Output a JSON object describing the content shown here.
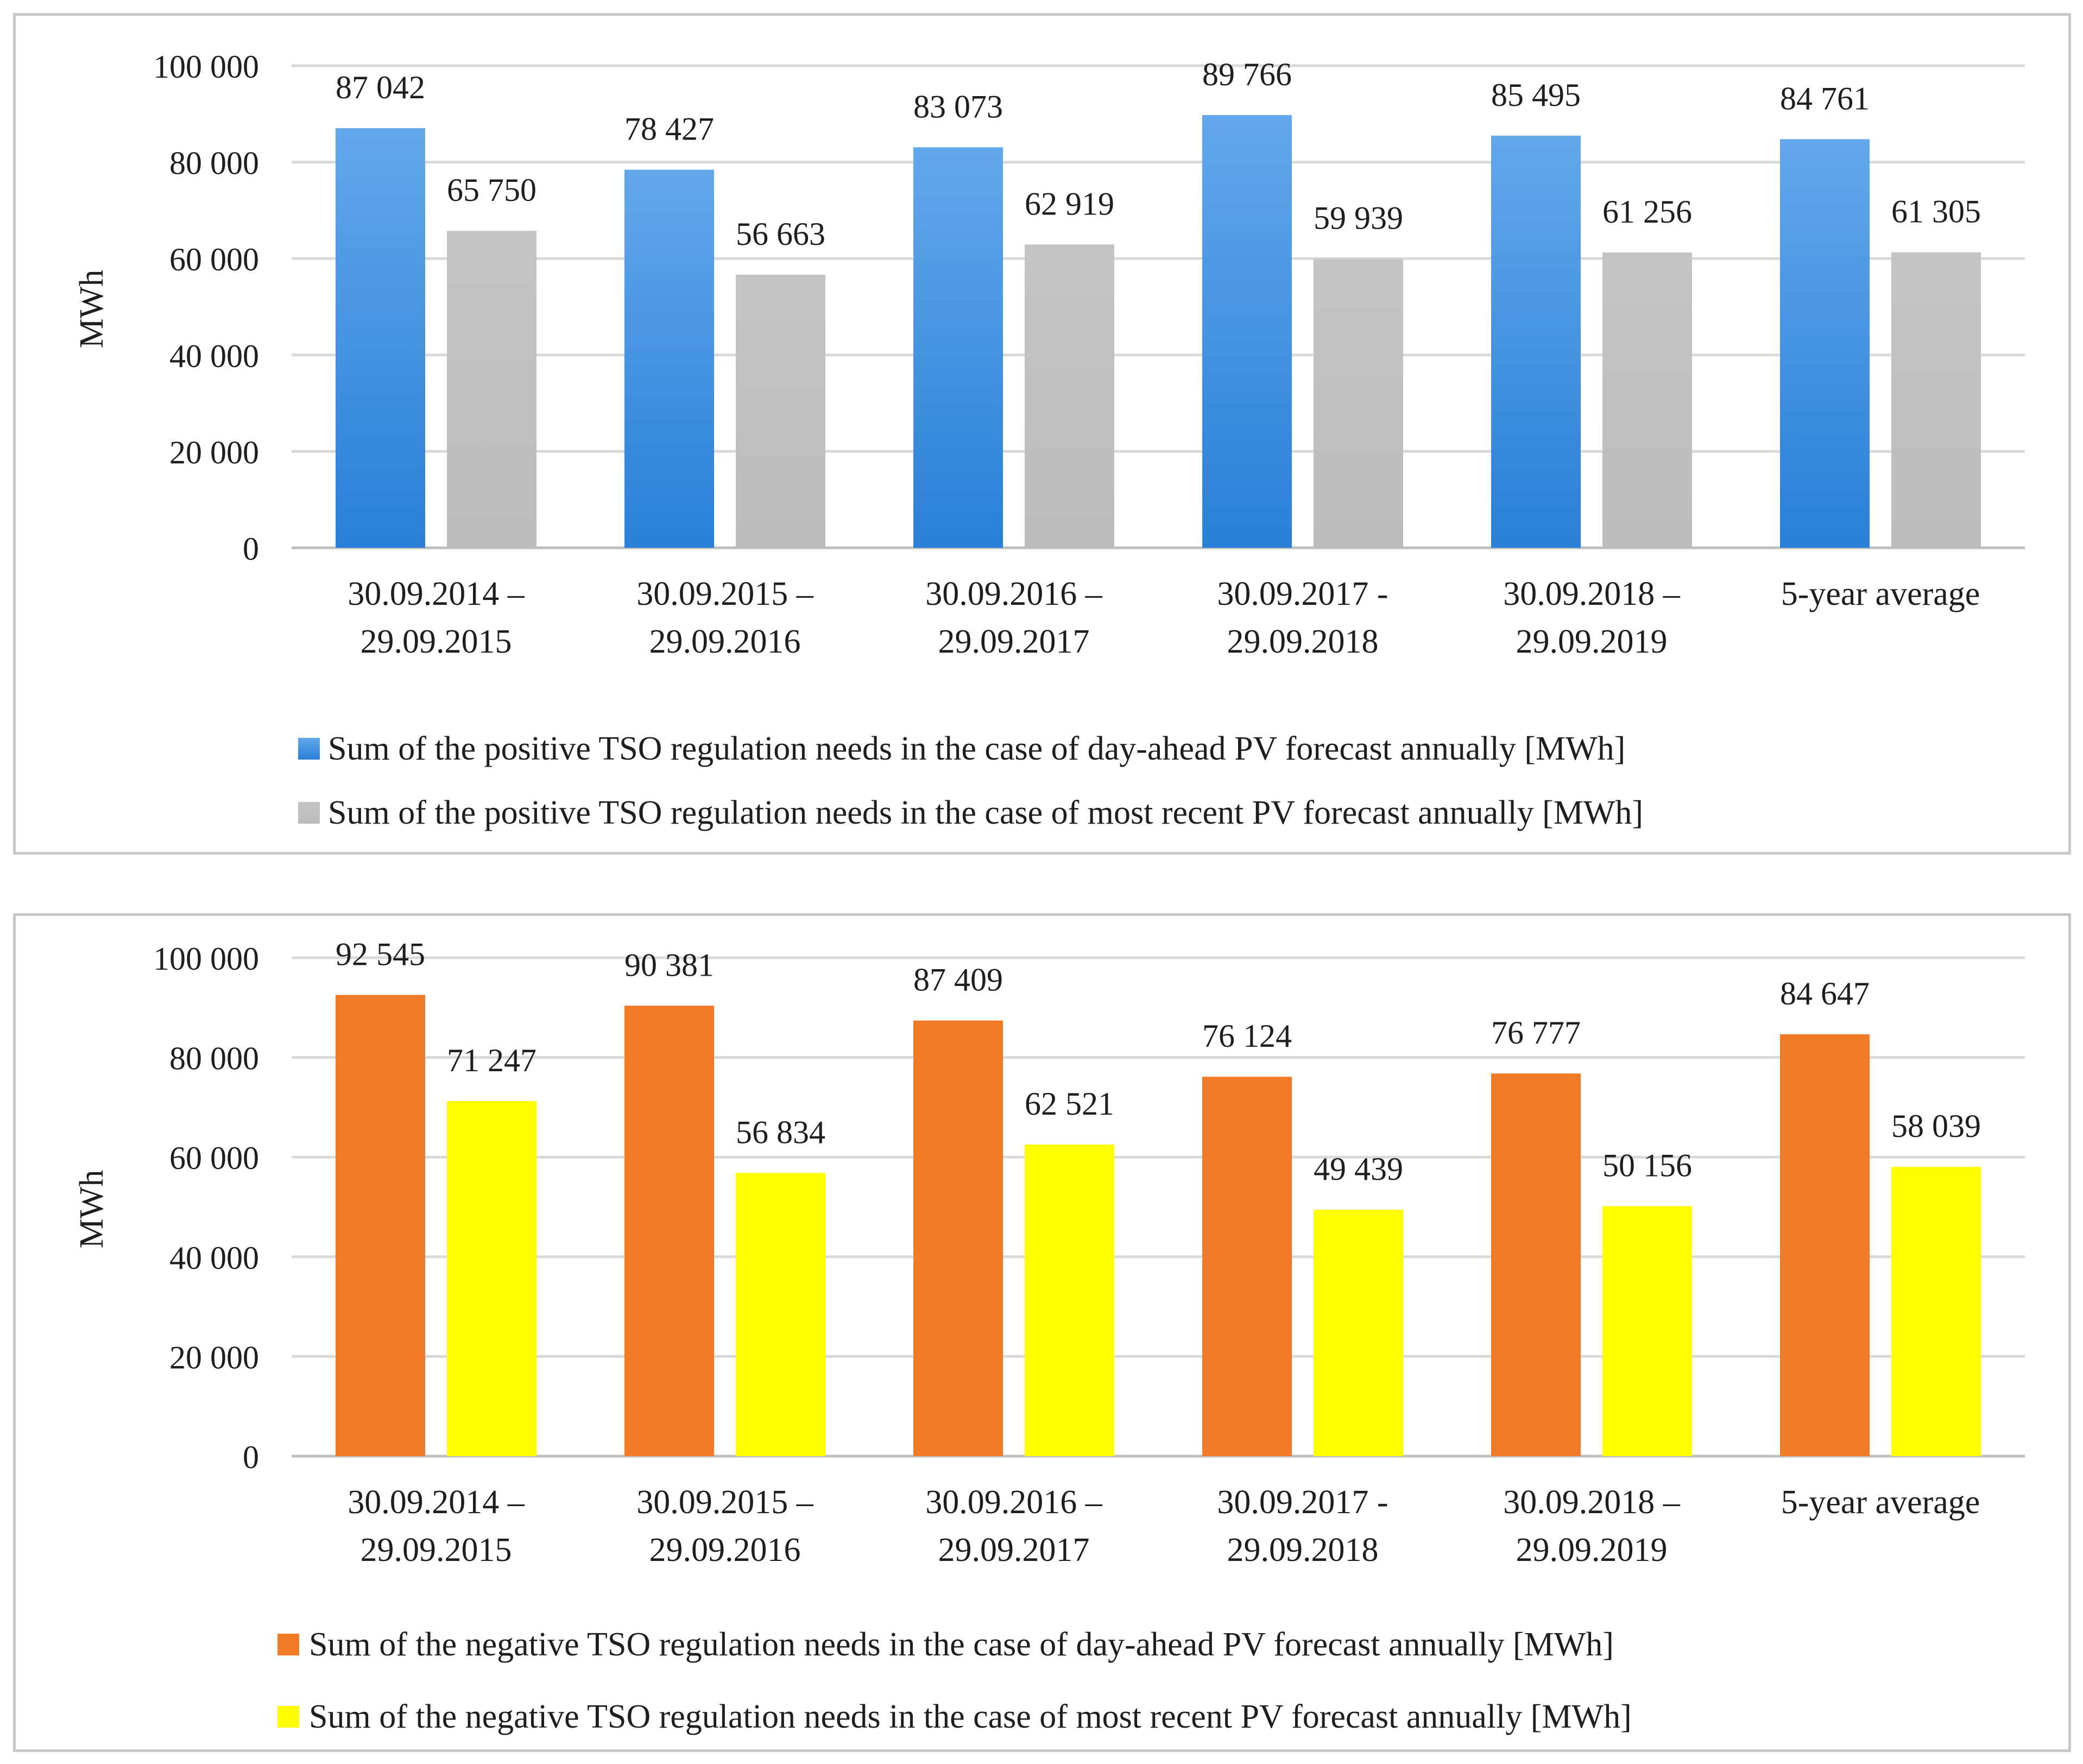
{
  "chart_data": [
    {
      "type": "bar",
      "ylabel": "MWh",
      "ylim": [
        0,
        100000
      ],
      "yticks": [
        0,
        20000,
        40000,
        60000,
        80000,
        100000
      ],
      "ytick_labels": [
        "0",
        "20 000",
        "40 000",
        "60 000",
        "80 000",
        "100 000"
      ],
      "grid": true,
      "legend_position": "bottom",
      "categories": [
        [
          "30.09.2014 –",
          "29.09.2015"
        ],
        [
          "30.09.2015 –",
          "29.09.2016"
        ],
        [
          "30.09.2016 –",
          "29.09.2017"
        ],
        [
          "30.09.2017 -",
          "29.09.2018"
        ],
        [
          "30.09.2018 –",
          "29.09.2019"
        ],
        [
          "5-year average"
        ]
      ],
      "series": [
        {
          "name": "Sum of the positive TSO regulation needs in the case of day-ahead PV forecast annually [MWh]",
          "color": "#3c8fe0",
          "color_top": "#62a8ea",
          "color_bottom": "#2a7fd8",
          "values": [
            87042,
            78427,
            83073,
            89766,
            85495,
            84761
          ],
          "labels": [
            "87 042",
            "78 427",
            "83 073",
            "89 766",
            "85 495",
            "84 761"
          ]
        },
        {
          "name": "Sum of the positive TSO regulation needs in the case of most recent PV forecast annually [MWh]",
          "color": "#c0c0c0",
          "color_top": "#c4c4c4",
          "color_bottom": "#bcbcbc",
          "values": [
            65750,
            56663,
            62919,
            59939,
            61256,
            61305
          ],
          "labels": [
            "65 750",
            "56 663",
            "62 919",
            "59 939",
            "61 256",
            "61 305"
          ]
        }
      ]
    },
    {
      "type": "bar",
      "ylabel": "MWh",
      "ylim": [
        0,
        100000
      ],
      "yticks": [
        0,
        20000,
        40000,
        60000,
        80000,
        100000
      ],
      "ytick_labels": [
        "0",
        "20 000",
        "40 000",
        "60 000",
        "80 000",
        "100 000"
      ],
      "grid": true,
      "legend_position": "bottom",
      "categories": [
        [
          "30.09.2014 –",
          "29.09.2015"
        ],
        [
          "30.09.2015 –",
          "29.09.2016"
        ],
        [
          "30.09.2016 –",
          "29.09.2017"
        ],
        [
          "30.09.2017 -",
          "29.09.2018"
        ],
        [
          "30.09.2018 –",
          "29.09.2019"
        ],
        [
          "5-year average"
        ]
      ],
      "series": [
        {
          "name": "Sum of the negative TSO regulation needs in the case of day-ahead PV forecast annually [MWh]",
          "color": "#f07a26",
          "color_top": "#f07a26",
          "color_bottom": "#f07a26",
          "values": [
            92545,
            90381,
            87409,
            76124,
            76777,
            84647
          ],
          "labels": [
            "92 545",
            "90 381",
            "87 409",
            "76 124",
            "76 777",
            "84 647"
          ]
        },
        {
          "name": "Sum of the negative TSO regulation needs in the case of most recent PV forecast annually [MWh]",
          "color": "#ffff00",
          "color_top": "#ffff00",
          "color_bottom": "#ffff00",
          "values": [
            71247,
            56834,
            62521,
            49439,
            50156,
            58039
          ],
          "labels": [
            "71 247",
            "56 834",
            "62 521",
            "49 439",
            "50 156",
            "58 039"
          ]
        }
      ]
    }
  ]
}
